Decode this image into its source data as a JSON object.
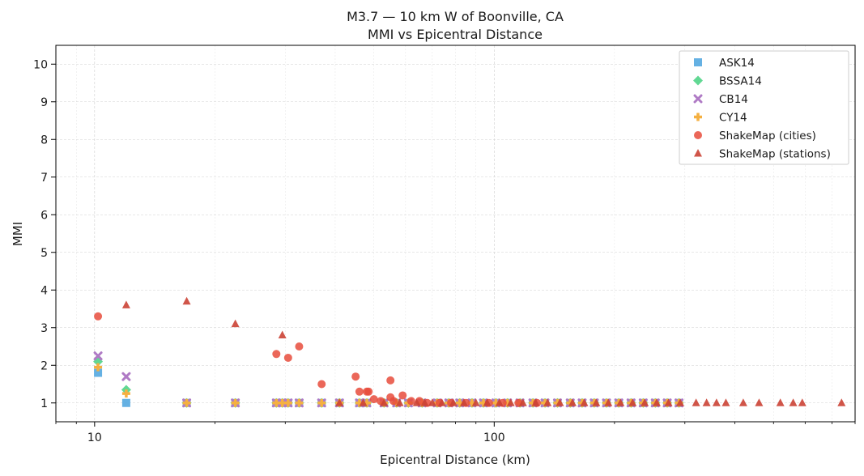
{
  "chart_data": {
    "type": "scatter",
    "title": "M3.7 — 10 km W of Boonville, CA",
    "subtitle": "MMI vs Epicentral Distance",
    "xlabel": "Epicentral Distance (km)",
    "ylabel": "MMI",
    "xscale": "log",
    "xlim": [
      8,
      800
    ],
    "ylim": [
      0.5,
      10.5
    ],
    "xticks": [
      10,
      100
    ],
    "yticks": [
      1,
      2,
      3,
      4,
      5,
      6,
      7,
      8,
      9,
      10
    ],
    "grid": true,
    "legend_position": "top-right",
    "gmpe_x": [
      10.2,
      12,
      17,
      22.5,
      28.5,
      29.5,
      30.5,
      32.5,
      37,
      41,
      46,
      48,
      53,
      57,
      61,
      66,
      72,
      77,
      82,
      88,
      94,
      101,
      108,
      116,
      125,
      134,
      144,
      155,
      166,
      178,
      191,
      205,
      220,
      236,
      253,
      271,
      290
    ],
    "series": [
      {
        "name": "ASK14",
        "marker": "square",
        "color": "#5dade2",
        "y": [
          1.8,
          1,
          1,
          1,
          1,
          1,
          1,
          1,
          1,
          1,
          1,
          1,
          1,
          1,
          1,
          1,
          1,
          1,
          1,
          1,
          1,
          1,
          1,
          1,
          1,
          1,
          1,
          1,
          1,
          1,
          1,
          1,
          1,
          1,
          1,
          1,
          1
        ]
      },
      {
        "name": "BSSA14",
        "marker": "diamond",
        "color": "#58d68d",
        "y": [
          2.1,
          1.35,
          1,
          1,
          1,
          1,
          1,
          1,
          1,
          1,
          1,
          1,
          1,
          1,
          1,
          1,
          1,
          1,
          1,
          1,
          1,
          1,
          1,
          1,
          1,
          1,
          1,
          1,
          1,
          1,
          1,
          1,
          1,
          1,
          1,
          1,
          1
        ]
      },
      {
        "name": "CB14",
        "marker": "x",
        "color": "#af7ac5",
        "y": [
          2.25,
          1.7,
          1,
          1,
          1,
          1,
          1,
          1,
          1,
          1,
          1,
          1,
          1,
          1,
          1,
          1,
          1,
          1,
          1,
          1,
          1,
          1,
          1,
          1,
          1,
          1,
          1,
          1,
          1,
          1,
          1,
          1,
          1,
          1,
          1,
          1,
          1
        ]
      },
      {
        "name": "CY14",
        "marker": "plus",
        "color": "#f5b041",
        "y": [
          1.95,
          1.25,
          1,
          1,
          1,
          1,
          1,
          1,
          1,
          1,
          1,
          1,
          1,
          1,
          1,
          1,
          1,
          1,
          1,
          1,
          1,
          1,
          1,
          1,
          1,
          1,
          1,
          1,
          1,
          1,
          1,
          1,
          1,
          1,
          1,
          1,
          1
        ]
      },
      {
        "name": "ShakeMap (cities)",
        "marker": "circle",
        "color": "#e74c3c",
        "points": [
          [
            10.2,
            3.3
          ],
          [
            28.5,
            2.3
          ],
          [
            30.5,
            2.2
          ],
          [
            32.5,
            2.5
          ],
          [
            37,
            1.5
          ],
          [
            45,
            1.7
          ],
          [
            46,
            1.3
          ],
          [
            48,
            1.3
          ],
          [
            48.5,
            1.3
          ],
          [
            50,
            1.1
          ],
          [
            52,
            1.05
          ],
          [
            55,
            1.6
          ],
          [
            55,
            1.15
          ],
          [
            56,
            1.05
          ],
          [
            59,
            1.2
          ],
          [
            62,
            1.05
          ],
          [
            65,
            1.05
          ],
          [
            68,
            1.0
          ],
          [
            73,
            1.0
          ],
          [
            78,
            1.0
          ],
          [
            85,
            1.0
          ],
          [
            97,
            1.0
          ],
          [
            105,
            1.0
          ],
          [
            115,
            1.0
          ],
          [
            128,
            1.0
          ]
        ]
      },
      {
        "name": "ShakeMap (stations)",
        "marker": "triangle",
        "color": "#cb4335",
        "points": [
          [
            12,
            3.6
          ],
          [
            17,
            3.7
          ],
          [
            22.5,
            3.1
          ],
          [
            29.5,
            2.8
          ],
          [
            41,
            1.0
          ],
          [
            47,
            1.0
          ],
          [
            53,
            1.0
          ],
          [
            58,
            1.0
          ],
          [
            64,
            1.0
          ],
          [
            67,
            1.0
          ],
          [
            70,
            1.0
          ],
          [
            74,
            1.0
          ],
          [
            79,
            1.0
          ],
          [
            84,
            1.0
          ],
          [
            90,
            1.0
          ],
          [
            96,
            1.0
          ],
          [
            103,
            1.0
          ],
          [
            110,
            1.0
          ],
          [
            118,
            1.0
          ],
          [
            127,
            1.0
          ],
          [
            136,
            1.0
          ],
          [
            146,
            1.0
          ],
          [
            157,
            1.0
          ],
          [
            168,
            1.0
          ],
          [
            180,
            1.0
          ],
          [
            193,
            1.0
          ],
          [
            207,
            1.0
          ],
          [
            222,
            1.0
          ],
          [
            238,
            1.0
          ],
          [
            255,
            1.0
          ],
          [
            273,
            1.0
          ],
          [
            292,
            1.0
          ],
          [
            320,
            1.0
          ],
          [
            340,
            1.0
          ],
          [
            360,
            1.0
          ],
          [
            380,
            1.0
          ],
          [
            420,
            1.0
          ],
          [
            460,
            1.0
          ],
          [
            520,
            1.0
          ],
          [
            560,
            1.0
          ],
          [
            590,
            1.0
          ],
          [
            740,
            1.0
          ]
        ]
      }
    ]
  }
}
